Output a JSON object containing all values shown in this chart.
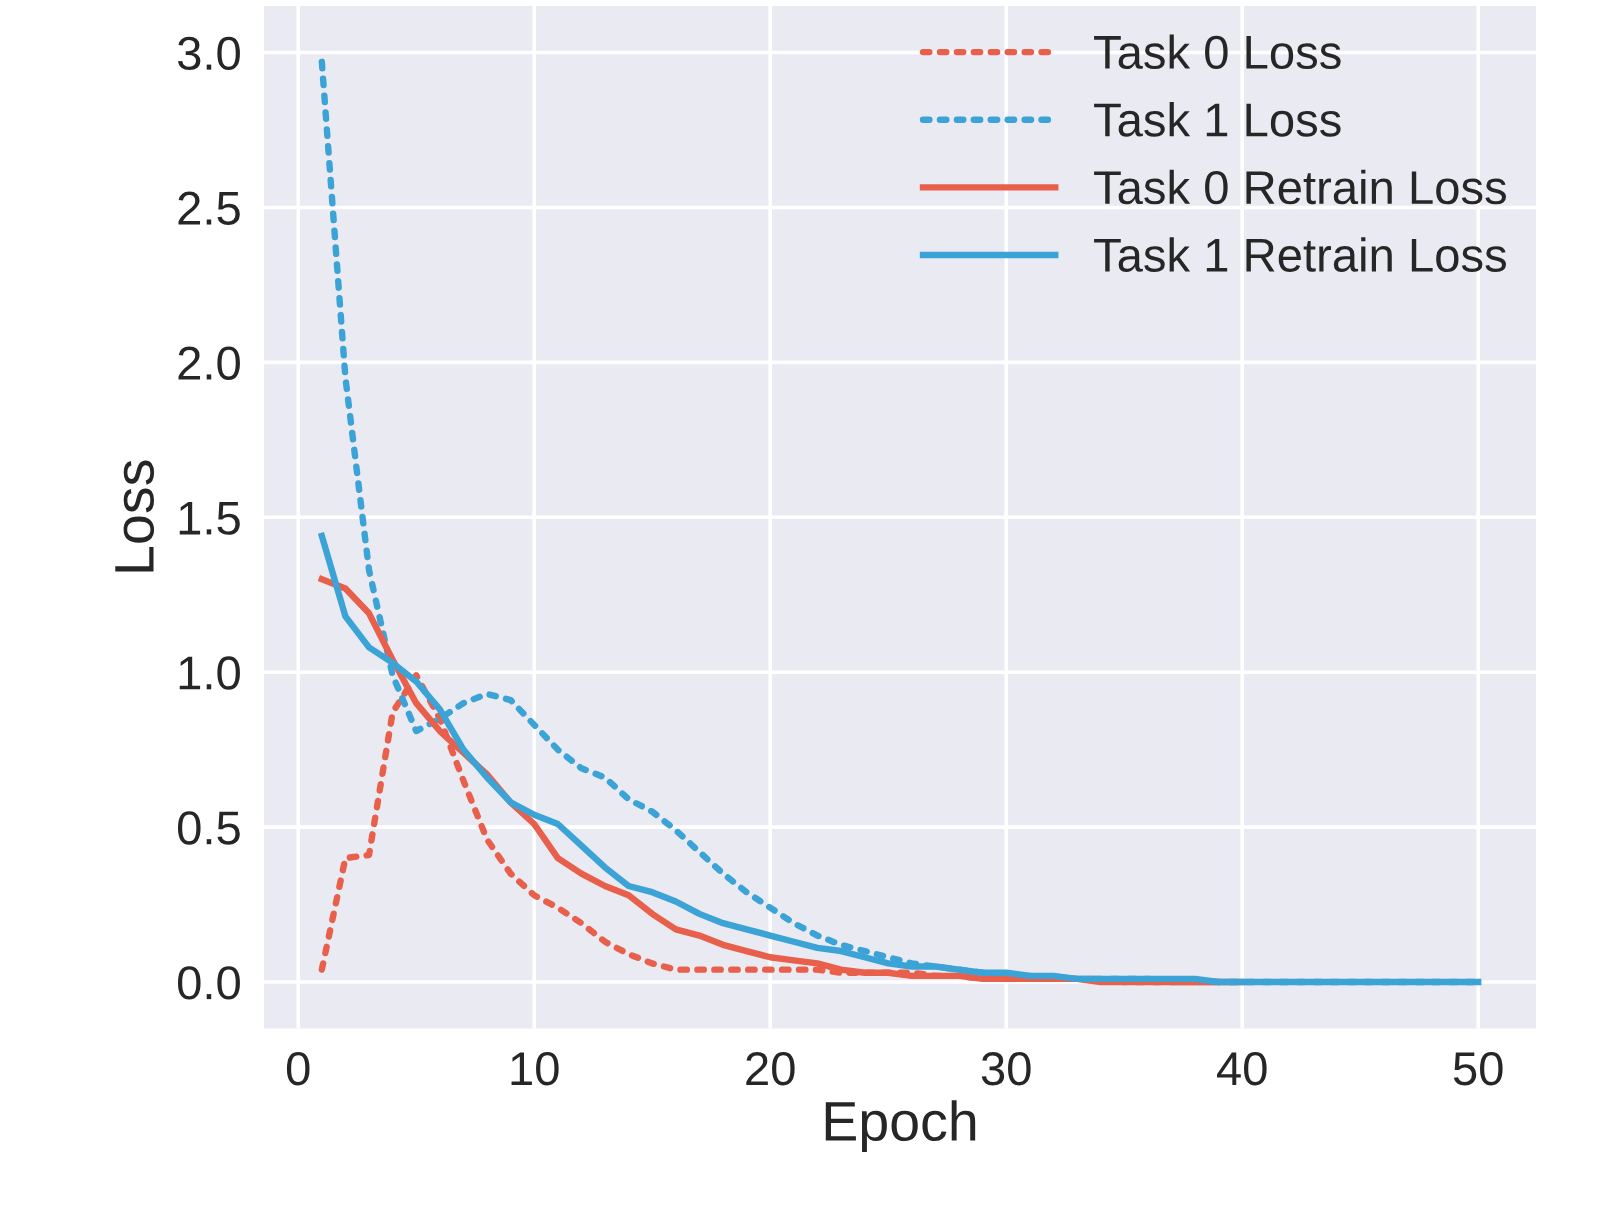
{
  "chart_data": {
    "type": "line",
    "xlabel": "Epoch",
    "ylabel": "Loss",
    "x": [
      1,
      2,
      3,
      4,
      5,
      6,
      7,
      8,
      9,
      10,
      11,
      12,
      13,
      14,
      15,
      16,
      17,
      18,
      19,
      20,
      21,
      22,
      23,
      24,
      25,
      26,
      27,
      28,
      29,
      30,
      31,
      32,
      33,
      34,
      35,
      36,
      37,
      38,
      39,
      40,
      41,
      42,
      43,
      44,
      45,
      46,
      47,
      48,
      49,
      50
    ],
    "series": [
      {
        "name": "Task 0 Loss",
        "color": "#e8604c",
        "line_style": "dotted",
        "values": [
          0.04,
          0.4,
          0.41,
          0.87,
          0.99,
          0.85,
          0.65,
          0.46,
          0.35,
          0.28,
          0.24,
          0.19,
          0.13,
          0.09,
          0.06,
          0.04,
          0.04,
          0.04,
          0.04,
          0.04,
          0.04,
          0.04,
          0.03,
          0.03,
          0.03,
          0.03,
          0.02,
          0.02,
          0.01,
          0.01,
          0.01,
          0.01,
          0.01,
          0.01,
          0,
          0,
          0,
          0,
          0,
          null,
          null,
          null,
          null,
          null,
          null,
          null,
          null,
          null,
          null,
          null
        ]
      },
      {
        "name": "Task 1 Loss",
        "color": "#3ba3d6",
        "line_style": "dotted",
        "values": [
          2.97,
          1.95,
          1.33,
          0.99,
          0.81,
          0.85,
          0.9,
          0.93,
          0.91,
          0.83,
          0.75,
          0.69,
          0.66,
          0.59,
          0.55,
          0.49,
          0.42,
          0.35,
          0.29,
          0.24,
          0.19,
          0.15,
          0.12,
          0.1,
          0.08,
          0.06,
          0.05,
          0.04,
          0.03,
          0.02,
          0.02,
          0.01,
          0.01,
          0.01,
          0.01,
          0.01,
          0,
          0,
          0,
          0,
          0,
          0,
          0,
          0,
          0,
          0,
          0,
          0,
          0,
          0
        ]
      },
      {
        "name": "Task 0 Retrain Loss",
        "color": "#e8604c",
        "line_style": "solid",
        "values": [
          1.3,
          1.27,
          1.19,
          1.04,
          0.9,
          0.81,
          0.74,
          0.67,
          0.58,
          0.51,
          0.4,
          0.35,
          0.31,
          0.28,
          0.22,
          0.17,
          0.15,
          0.12,
          0.1,
          0.08,
          0.07,
          0.06,
          0.04,
          0.03,
          0.03,
          0.02,
          0.02,
          0.02,
          0.01,
          0.01,
          0.01,
          0.01,
          0.01,
          0,
          0,
          0,
          0,
          0,
          0,
          0,
          null,
          null,
          null,
          null,
          null,
          null,
          null,
          null,
          null,
          null
        ]
      },
      {
        "name": "Task 1 Retrain Loss",
        "color": "#3ba3d6",
        "line_style": "solid",
        "values": [
          1.44,
          1.18,
          1.08,
          1.03,
          0.97,
          0.88,
          0.75,
          0.66,
          0.58,
          0.54,
          0.51,
          0.44,
          0.37,
          0.31,
          0.29,
          0.26,
          0.22,
          0.19,
          0.17,
          0.15,
          0.13,
          0.11,
          0.1,
          0.08,
          0.06,
          0.05,
          0.05,
          0.04,
          0.03,
          0.03,
          0.02,
          0.02,
          0.01,
          0.01,
          0.01,
          0.01,
          0.01,
          0.01,
          0,
          0,
          0,
          0,
          0,
          0,
          0,
          0,
          0,
          0,
          0,
          0
        ]
      }
    ],
    "xlim": [
      -1.45,
      52.45
    ],
    "ylim": [
      -0.15,
      3.15
    ],
    "xticks": [
      0,
      10,
      20,
      30,
      40,
      50
    ],
    "yticks": [
      {
        "value": 0,
        "label": "0.0"
      },
      {
        "value": 0.5,
        "label": "0.5"
      },
      {
        "value": 1,
        "label": "1.0"
      },
      {
        "value": 1.5,
        "label": "1.5"
      },
      {
        "value": 2,
        "label": "2.0"
      },
      {
        "value": 2.5,
        "label": "2.5"
      },
      {
        "value": 3,
        "label": "3.0"
      }
    ],
    "grid": true,
    "legend": "top right"
  }
}
